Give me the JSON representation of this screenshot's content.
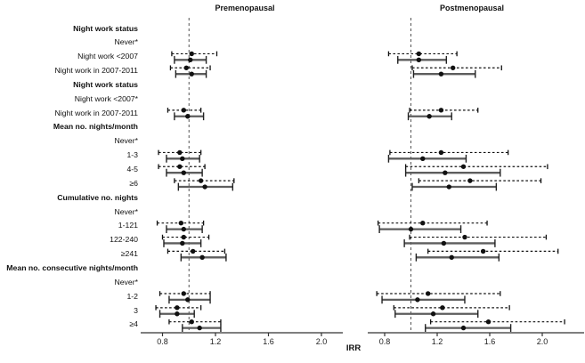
{
  "figure": {
    "xaxis_label": "IRR"
  },
  "chart_data": {
    "type": "forest",
    "panels": [
      {
        "key": "pre",
        "title": "Premenopausal"
      },
      {
        "key": "post",
        "title": "Postmenopausal"
      }
    ],
    "xlabel": "IRR",
    "x_ticks": [
      0.8,
      1.2,
      1.6,
      2.0
    ],
    "x_tick_labels": [
      "0.8",
      "1.2",
      "1.6",
      "2.0"
    ],
    "ref_line": 1.0,
    "series_styles": [
      "dashed",
      "solid"
    ],
    "colors": {
      "dashed": "#111111",
      "solid_line": "#5d5d5d",
      "caps": "#222222",
      "marker": "#111111",
      "axis": "#333333",
      "ref": "#555555"
    },
    "rows": [
      {
        "label": "Night work status",
        "kind": "header"
      },
      {
        "label": "Never*",
        "kind": "ref"
      },
      {
        "label": "Night work <2007",
        "kind": "data",
        "pre": {
          "dashed": [
            1.02,
            0.87,
            1.21
          ],
          "solid": [
            1.01,
            0.89,
            1.13
          ]
        },
        "post": {
          "dashed": [
            1.06,
            0.83,
            1.35
          ],
          "solid": [
            1.06,
            0.9,
            1.27
          ]
        }
      },
      {
        "label": "Night work in 2007-2011",
        "kind": "data",
        "pre": {
          "dashed": [
            0.98,
            0.86,
            1.16
          ],
          "solid": [
            1.02,
            0.9,
            1.13
          ]
        },
        "post": {
          "dashed": [
            1.32,
            1.01,
            1.69
          ],
          "solid": [
            1.23,
            1.02,
            1.49
          ]
        }
      },
      {
        "label": "Night work status",
        "kind": "header"
      },
      {
        "label": "Night work <2007*",
        "kind": "ref"
      },
      {
        "label": "Night work in 2007-2011",
        "kind": "data",
        "pre": {
          "dashed": [
            0.96,
            0.84,
            1.09
          ],
          "solid": [
            0.99,
            0.89,
            1.11
          ]
        },
        "post": {
          "dashed": [
            1.23,
            0.99,
            1.51
          ],
          "solid": [
            1.14,
            0.98,
            1.31
          ]
        }
      },
      {
        "label": "Mean no. nights/month",
        "kind": "header"
      },
      {
        "label": "Never*",
        "kind": "ref"
      },
      {
        "label": "1-3",
        "kind": "data",
        "pre": {
          "dashed": [
            0.93,
            0.77,
            1.09
          ],
          "solid": [
            0.95,
            0.83,
            1.08
          ]
        },
        "post": {
          "dashed": [
            1.23,
            0.84,
            1.74
          ],
          "solid": [
            1.09,
            0.83,
            1.42
          ]
        }
      },
      {
        "label": "4-5",
        "kind": "data",
        "pre": {
          "dashed": [
            0.93,
            0.77,
            1.12
          ],
          "solid": [
            0.96,
            0.83,
            1.1
          ]
        },
        "post": {
          "dashed": [
            1.4,
            0.96,
            2.04
          ],
          "solid": [
            1.26,
            0.96,
            1.68
          ]
        }
      },
      {
        "label": "≥6",
        "kind": "data",
        "pre": {
          "dashed": [
            1.09,
            0.89,
            1.34
          ],
          "solid": [
            1.12,
            0.92,
            1.33
          ]
        },
        "post": {
          "dashed": [
            1.45,
            1.06,
            1.99
          ],
          "solid": [
            1.29,
            1.01,
            1.65
          ]
        }
      },
      {
        "label": "Cumulative no. nights",
        "kind": "header"
      },
      {
        "label": "Never*",
        "kind": "ref"
      },
      {
        "label": "1-121",
        "kind": "data",
        "pre": {
          "dashed": [
            0.94,
            0.76,
            1.11
          ],
          "solid": [
            0.96,
            0.83,
            1.1
          ]
        },
        "post": {
          "dashed": [
            1.09,
            0.75,
            1.58
          ],
          "solid": [
            1.0,
            0.76,
            1.38
          ]
        }
      },
      {
        "label": "122-240",
        "kind": "data",
        "pre": {
          "dashed": [
            0.96,
            0.8,
            1.15
          ],
          "solid": [
            0.95,
            0.81,
            1.09
          ]
        },
        "post": {
          "dashed": [
            1.41,
            0.99,
            2.03
          ],
          "solid": [
            1.25,
            0.95,
            1.64
          ]
        }
      },
      {
        "label": "≥241",
        "kind": "data",
        "pre": {
          "dashed": [
            1.03,
            0.84,
            1.27
          ],
          "solid": [
            1.1,
            0.94,
            1.28
          ]
        },
        "post": {
          "dashed": [
            1.55,
            1.13,
            2.12
          ],
          "solid": [
            1.31,
            1.04,
            1.67
          ]
        }
      },
      {
        "label": "Mean no. consecutive nights/month",
        "kind": "header"
      },
      {
        "label": "Never*",
        "kind": "ref"
      },
      {
        "label": "1-2",
        "kind": "data",
        "pre": {
          "dashed": [
            0.96,
            0.78,
            1.16
          ],
          "solid": [
            0.99,
            0.85,
            1.16
          ]
        },
        "post": {
          "dashed": [
            1.13,
            0.74,
            1.68
          ],
          "solid": [
            1.05,
            0.78,
            1.41
          ]
        }
      },
      {
        "label": "3",
        "kind": "data",
        "pre": {
          "dashed": [
            0.91,
            0.75,
            1.09
          ],
          "solid": [
            0.91,
            0.78,
            1.04
          ]
        },
        "post": {
          "dashed": [
            1.24,
            0.87,
            1.75
          ],
          "solid": [
            1.17,
            0.88,
            1.51
          ]
        }
      },
      {
        "label": "≥4",
        "kind": "data",
        "pre": {
          "dashed": [
            1.02,
            0.85,
            1.24
          ],
          "solid": [
            1.08,
            0.95,
            1.24
          ]
        },
        "post": {
          "dashed": [
            1.59,
            1.15,
            2.17
          ],
          "solid": [
            1.4,
            1.11,
            1.76
          ]
        }
      }
    ]
  }
}
